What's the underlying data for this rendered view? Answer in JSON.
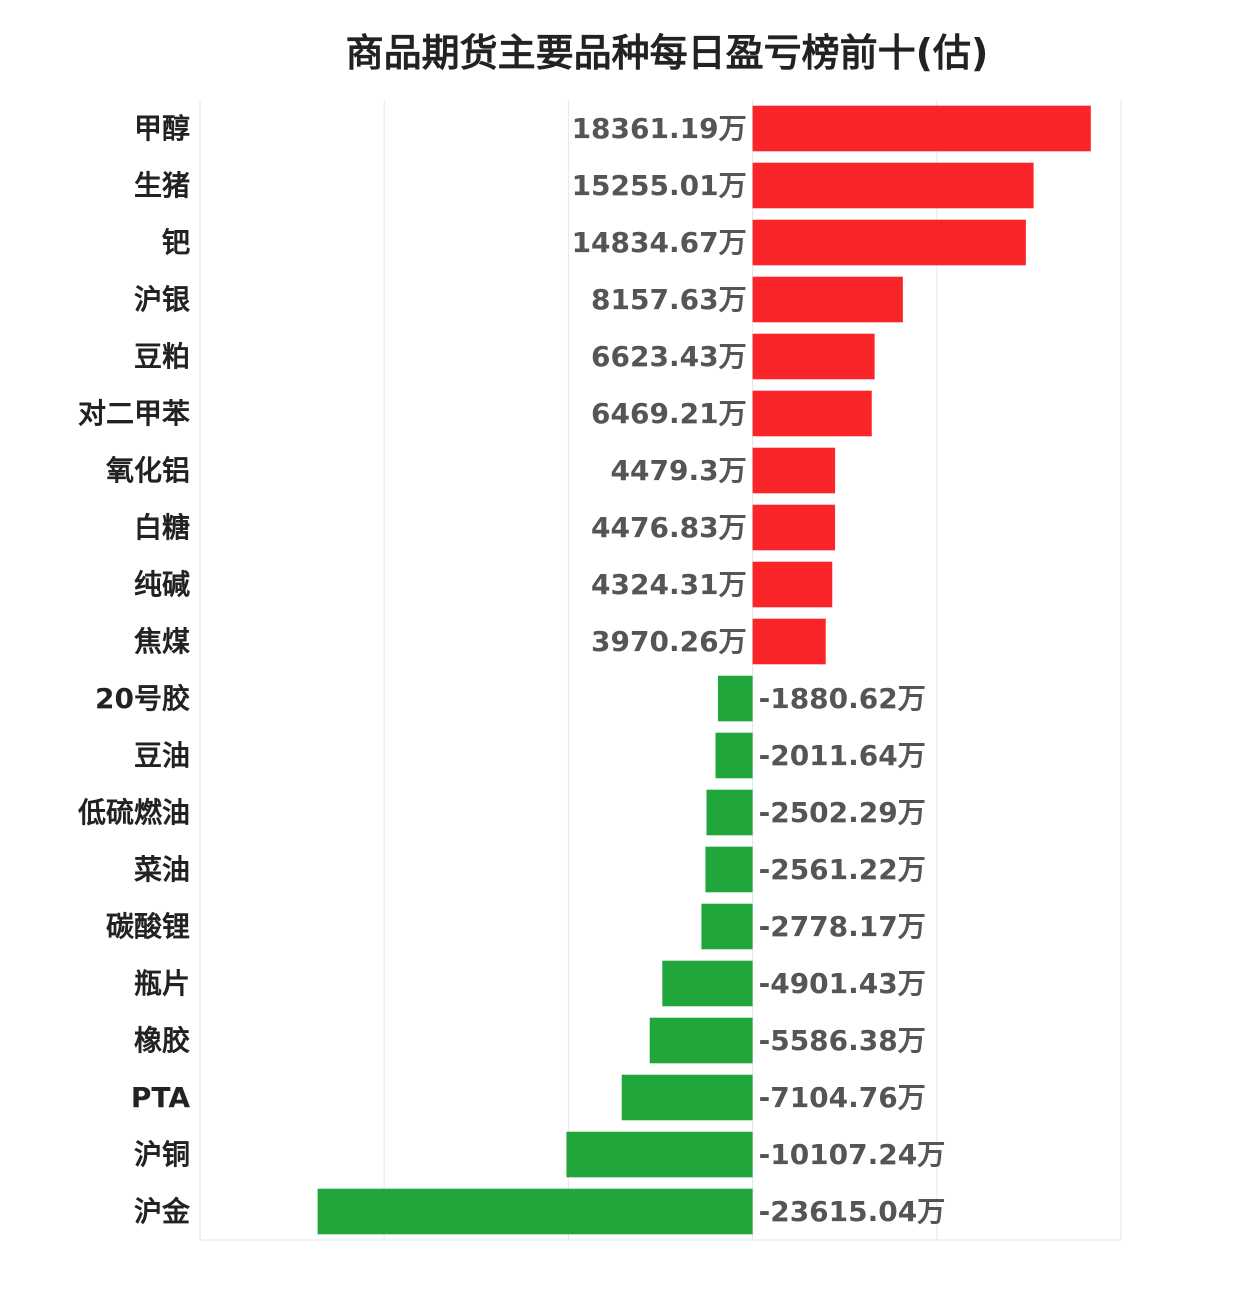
{
  "chart_data": {
    "type": "bar",
    "orientation": "horizontal",
    "title": "商品期货主要品种每日盈亏榜前十(估)",
    "unit_suffix": "万",
    "categories": [
      "甲醇",
      "生猪",
      "钯",
      "沪银",
      "豆粕",
      "对二甲苯",
      "氧化铝",
      "白糖",
      "纯碱",
      "焦煤",
      "20号胶",
      "豆油",
      "低硫燃油",
      "菜油",
      "碳酸锂",
      "瓶片",
      "橡胶",
      "PTA",
      "沪铜",
      "沪金"
    ],
    "values": [
      18361.19,
      15255.01,
      14834.67,
      8157.63,
      6623.43,
      6469.21,
      4479.3,
      4476.83,
      4324.31,
      3970.26,
      -1880.62,
      -2011.64,
      -2502.29,
      -2561.22,
      -2778.17,
      -4901.43,
      -5586.38,
      -7104.76,
      -10107.24,
      -23615.04
    ],
    "value_labels": [
      "18361.19万",
      "15255.01万",
      "14834.67万",
      "8157.63万",
      "6623.43万",
      "6469.21万",
      "4479.3万",
      "4476.83万",
      "4324.31万",
      "3970.26万",
      "-1880.62万",
      "-2011.64万",
      "-2502.29万",
      "-2561.22万",
      "-2778.17万",
      "-4901.43万",
      "-5586.38万",
      "-7104.76万",
      "-10107.24万",
      "-23615.04万"
    ],
    "xlim": [
      -30000,
      20000
    ],
    "grid": true,
    "colors": {
      "positive": "#f92528",
      "negative": "#21a63b"
    }
  }
}
